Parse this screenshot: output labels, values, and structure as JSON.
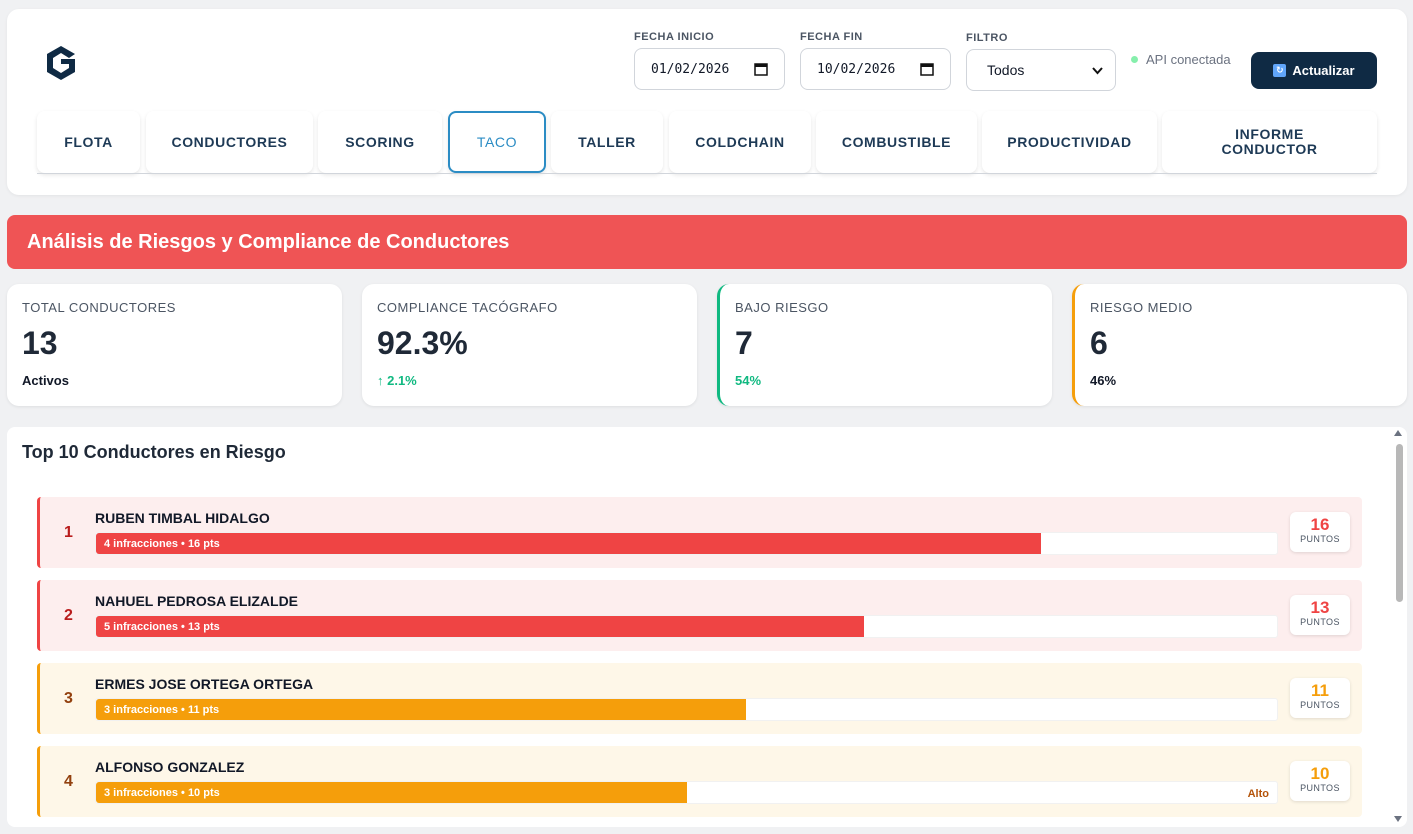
{
  "header": {
    "fecha_inicio": {
      "label": "FECHA INICIO",
      "value": "01/02/2026"
    },
    "fecha_fin": {
      "label": "FECHA FIN",
      "value": "10/02/2026"
    },
    "filtro": {
      "label": "FILTRO",
      "value": "Todos"
    },
    "api_status": "API conectada",
    "refresh_label": "Actualizar"
  },
  "tabs": [
    {
      "label": "FLOTA"
    },
    {
      "label": "CONDUCTORES"
    },
    {
      "label": "SCORING"
    },
    {
      "label": "TACO",
      "active": true
    },
    {
      "label": "TALLER"
    },
    {
      "label": "COLDCHAIN"
    },
    {
      "label": "COMBUSTIBLE"
    },
    {
      "label": "PRODUCTIVIDAD"
    },
    {
      "label": "INFORME CONDUCTOR"
    }
  ],
  "banner": {
    "title": "Análisis de Riesgos y Compliance de Conductores"
  },
  "kpis": [
    {
      "label": "TOTAL CONDUCTORES",
      "value": "13",
      "sub": "Activos"
    },
    {
      "label": "COMPLIANCE TACÓGRAFO",
      "value": "92.3%",
      "sub": "↑ 2.1%"
    },
    {
      "label": "BAJO RIESGO",
      "value": "7",
      "sub": "54%"
    },
    {
      "label": "RIESGO MEDIO",
      "value": "6",
      "sub": "46%"
    }
  ],
  "risk_list": {
    "title": "Top 10 Conductores en Riesgo",
    "points_label": "PUNTOS",
    "rows": [
      {
        "rank": "1",
        "name": "RUBEN TIMBAL HIDALGO",
        "bar_text": "4 infracciones • 16 pts",
        "points": "16",
        "fill_percent": 80,
        "level": ""
      },
      {
        "rank": "2",
        "name": "NAHUEL PEDROSA ELIZALDE",
        "bar_text": "5 infracciones • 13 pts",
        "points": "13",
        "fill_percent": 65,
        "level": ""
      },
      {
        "rank": "3",
        "name": "ERMES JOSE ORTEGA ORTEGA",
        "bar_text": "3 infracciones • 11 pts",
        "points": "11",
        "fill_percent": 55,
        "level": ""
      },
      {
        "rank": "4",
        "name": "ALFONSO GONZALEZ",
        "bar_text": "3 infracciones • 10 pts",
        "points": "10",
        "fill_percent": 50,
        "level": "Alto"
      }
    ]
  },
  "colors": {
    "brand_navy": "#0f2a44",
    "banner_red": "#ef5455",
    "high_risk_red": "#ef4444",
    "medium_risk_amber": "#f59e0b",
    "positive_green": "#10b981",
    "active_tab_blue": "#2b8cc4"
  }
}
